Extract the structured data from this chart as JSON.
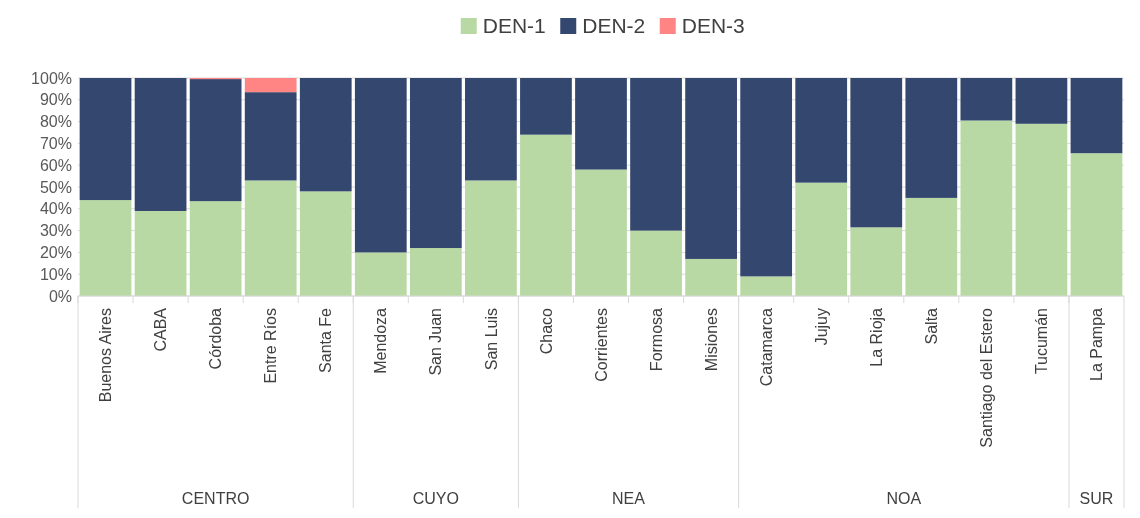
{
  "chart_data": {
    "type": "bar",
    "stacked": true,
    "legend": "top",
    "grid": "y",
    "categories": [
      "Buenos Aires",
      "CABA",
      "Córdoba",
      "Entre Ríos",
      "Santa Fe",
      "Mendoza",
      "San Juan",
      "San Luis",
      "Chaco",
      "Corrientes",
      "Formosa",
      "Misiones",
      "Catamarca",
      "Jujuy",
      "La Rioja",
      "Salta",
      "Santiago del Estero",
      "Tucumán",
      "La Pampa"
    ],
    "series": [
      {
        "name": "DEN-1",
        "color": "#b9d9a4",
        "values": [
          44,
          39,
          43.5,
          53,
          48,
          20,
          22,
          53,
          74,
          58,
          30,
          17,
          9,
          52,
          31.5,
          45,
          80.5,
          79,
          65.5
        ]
      },
      {
        "name": "DEN-2",
        "color": "#34476e",
        "values": [
          56,
          61,
          56,
          40.5,
          52,
          80,
          78,
          47,
          26,
          42,
          70,
          83,
          91,
          48,
          68.5,
          55,
          19.5,
          21,
          34.5
        ]
      },
      {
        "name": "DEN-3",
        "color": "#ff8585",
        "values": [
          0,
          0,
          0.5,
          6.5,
          0,
          0,
          0,
          0,
          0,
          0,
          0,
          0,
          0,
          0,
          0,
          0,
          0,
          0,
          0
        ]
      }
    ],
    "ylim": [
      0,
      100
    ],
    "yticks": [
      {
        "value": 0,
        "label": "0%"
      },
      {
        "value": 10,
        "label": "10%"
      },
      {
        "value": 20,
        "label": "20%"
      },
      {
        "value": 30,
        "label": "30%"
      },
      {
        "value": 40,
        "label": "40%"
      },
      {
        "value": 50,
        "label": "50%"
      },
      {
        "value": 60,
        "label": "60%"
      },
      {
        "value": 70,
        "label": "70%"
      },
      {
        "value": 80,
        "label": "80%"
      },
      {
        "value": 90,
        "label": "90%"
      },
      {
        "value": 100,
        "label": "100%"
      }
    ],
    "annotations": [
      "CENTRO",
      "CUYO",
      "NEA",
      "NOA",
      "SUR"
    ]
  }
}
